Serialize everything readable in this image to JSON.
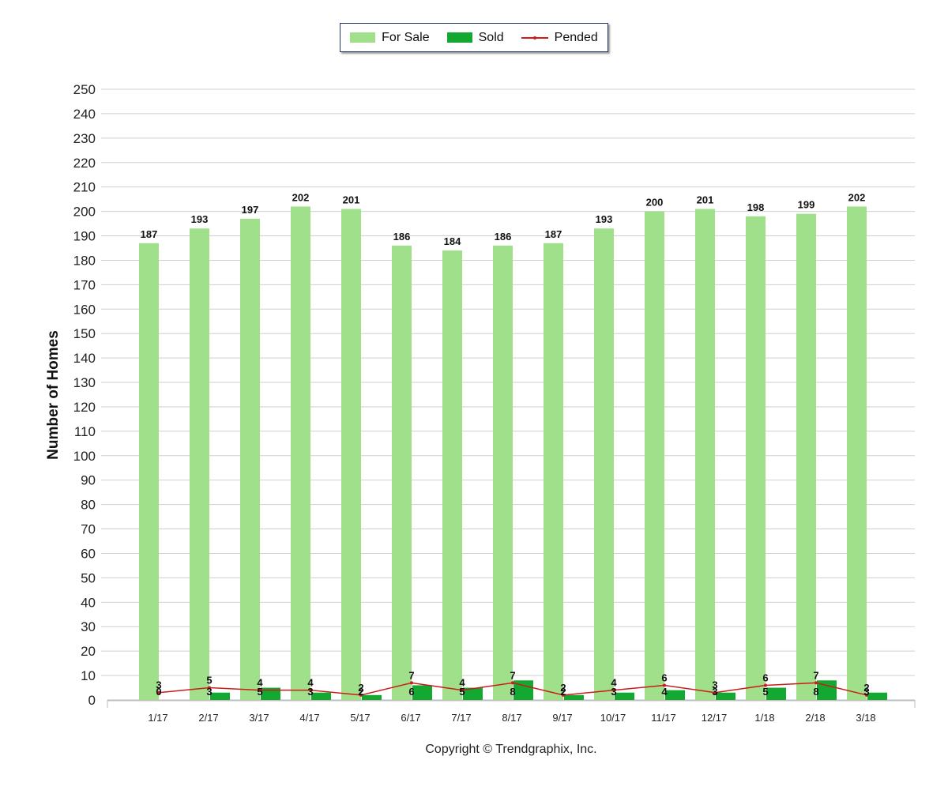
{
  "legend": {
    "for_sale": "For Sale",
    "sold": "Sold",
    "pended": "Pended"
  },
  "colors": {
    "for_sale": "#a0e08a",
    "sold": "#12a832",
    "pended": "#cc1b1b",
    "grid": "#cfcfcf"
  },
  "footer": "Copyright © Trendgraphix, Inc.",
  "chart_data": {
    "type": "bar",
    "ylabel": "Number of Homes",
    "xlabel": "",
    "ylim": [
      0,
      250
    ],
    "yticks": [
      0,
      10,
      20,
      30,
      40,
      50,
      60,
      70,
      80,
      90,
      100,
      110,
      120,
      130,
      140,
      150,
      160,
      170,
      180,
      190,
      200,
      210,
      220,
      230,
      240,
      250
    ],
    "grid": true,
    "legend_position": "top-center",
    "categories": [
      "1/17",
      "2/17",
      "3/17",
      "4/17",
      "5/17",
      "6/17",
      "7/17",
      "8/17",
      "9/17",
      "10/17",
      "11/17",
      "12/17",
      "1/18",
      "2/18",
      "3/18"
    ],
    "series": [
      {
        "name": "For Sale",
        "type": "bar",
        "values": [
          187,
          193,
          197,
          202,
          201,
          186,
          184,
          186,
          187,
          193,
          200,
          201,
          198,
          199,
          202
        ]
      },
      {
        "name": "Sold",
        "type": "bar",
        "values": [
          0,
          3,
          5,
          3,
          2,
          6,
          5,
          8,
          2,
          3,
          4,
          3,
          5,
          8,
          3
        ]
      },
      {
        "name": "Pended",
        "type": "line",
        "values": [
          3,
          5,
          4,
          4,
          2,
          7,
          4,
          7,
          2,
          4,
          6,
          3,
          6,
          7,
          2
        ]
      }
    ]
  }
}
